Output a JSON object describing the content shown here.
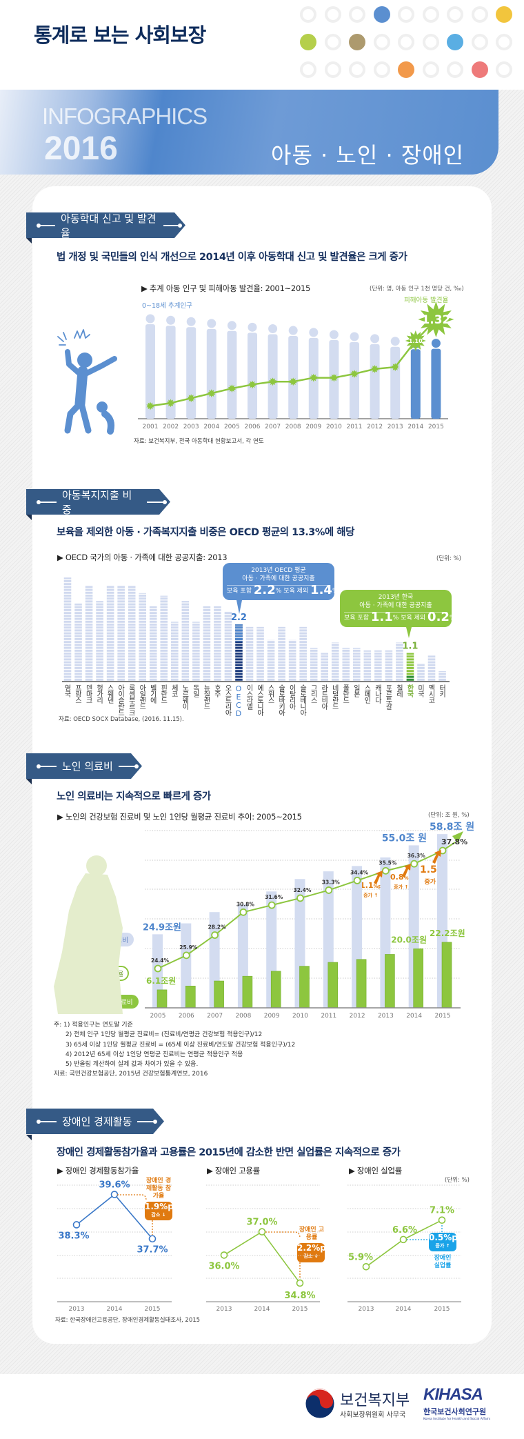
{
  "header": {
    "title": "통계로 보는 사회보장",
    "dots": [
      [
        null,
        null,
        null,
        "#5b8fd0",
        null,
        null,
        null,
        null,
        "#f2c53d"
      ],
      [
        "#b5cf4b",
        null,
        "#ad9a6e",
        null,
        null,
        null,
        "#5aaee3",
        null,
        null
      ],
      [
        null,
        null,
        null,
        null,
        "#f2994a",
        null,
        null,
        "#ee7a7a",
        null
      ]
    ]
  },
  "banner": {
    "kicker": "INFOGRAPHICS",
    "year": "2016",
    "topic": "아동 · 노인 · 장애인"
  },
  "sections": [
    {
      "tab": "아동학대 신고 및 발견율",
      "headline": "법 개정 및 국민들의 인식 개선으로 2014년 이후 아동학대 신고 및 발견율은 크게 증가",
      "chart_title": "▶ 추계 아동 인구 및 피해아동 발견율: 2001~2015",
      "unit": "(단위: 명, 아동 인구 1천 명당 건, ‰)",
      "source": "자료: 보건복지부, 전국 아동학대 현황보고서, 각 연도"
    },
    {
      "tab": "아동복지지출 비중",
      "headline": "보육을 제외한 아동 · 가족복지지출 비중은 OECD 평균의 13.3%에 해당",
      "chart_title": "▶ OECD 국가의 아동 · 가족에 대한 공공지출: 2013",
      "unit": "(단위: %)",
      "source": "자료: OECD SOCX Database, (2016. 11.15).",
      "callout_oecd": {
        "line1": "2013년 OECD 평균",
        "line2": "아동 · 가족에 대한 공공지출",
        "incl_label": "보육 포함",
        "incl_value": "2.2",
        "excl_label": "보육 제외",
        "excl_value": "1.4",
        "pct": "%"
      },
      "callout_korea": {
        "line1": "2013년 한국",
        "line2": "아동 · 가족에 대한 공공지출",
        "incl_label": "보육 포함",
        "incl_value": "1.1",
        "excl_label": "보육 제외",
        "excl_value": "0.2",
        "pct": "%"
      }
    },
    {
      "tab": "노인 의료비",
      "headline": "노인 의료비는 지속적으로 빠르게 증가",
      "chart_title": "▶ 노인의 건강보험 진료비 및 노인 1인당 월평균 진료비 추이: 2005~2015",
      "unit": "(단위: 조 원, %)",
      "legend_total": "총 진료비",
      "legend_ratio": "노인 진료비 비율",
      "legend_elderly": "65세 이상 진료비",
      "notes": [
        "주:  1) 적용인구는 연도말 기준",
        "2) 전체 인구 1인당 월평균 진료비= (진료비/연평균 건강보험 적용인구)/12",
        "3) 65세 이상 1인당 월평균 진료비 = (65세 이상 진료비/연도말 건강보험 적용인구)/12",
        "4) 2012년 65세 이상 1인당 연평균 진료비는 연평균 적용인구 적용",
        "5) 반올림 계산하여 실제 값과 차이가 있을 수 있음."
      ],
      "source": "자료: 국민건강보험공단, 2015년 건강보험통계연보, 2016",
      "increases": [
        {
          "value": "1.1",
          "unit": "%p",
          "label": "증가 ↑"
        },
        {
          "value": "0.8",
          "unit": "%p",
          "label": "증가 ↑"
        },
        {
          "value": "1.5",
          "unit": "%p",
          "label": "증가 ↑"
        }
      ]
    },
    {
      "tab": "장애인 경제활동",
      "headline": "장애인 경제활동참가율과 고용률은 2015년에 감소한 반면 실업률은 지속적으로 증가",
      "sub_titles": [
        "▶ 장애인 경제활동참가율",
        "▶ 장애인 고용률",
        "▶ 장애인 실업률"
      ],
      "unit": "(단위: %)",
      "source": "자료: 한국장애인고용공단, 장애인경제활동실태조사, 2015",
      "callouts": [
        {
          "label": "장애인 경제활동 참가율",
          "value": "1.9%p",
          "change": "감소 ↓",
          "color": "#e07a10"
        },
        {
          "label": "장애인 고용률",
          "value": "2.2%p",
          "change": "감소 ↓",
          "color": "#e07a10"
        },
        {
          "label": "장애인 실업률",
          "value": "0.5%p",
          "change": "증가 ↑",
          "color": "#1aa3e8"
        }
      ]
    }
  ],
  "footer": {
    "mohw_name": "보건복지부",
    "mohw_sub": "사회보장위원회 사무국",
    "kihasa_logo": "KIHASA",
    "kihasa_name": "한국보건사회연구원",
    "kihasa_en": "Korea Institute for Health and Social Affairs"
  },
  "chart_data": [
    {
      "type": "bar+line",
      "categories": [
        "2001",
        "2002",
        "2003",
        "2004",
        "2005",
        "2006",
        "2007",
        "2008",
        "2009",
        "2010",
        "2011",
        "2012",
        "2013",
        "2014",
        "2015"
      ],
      "series": [
        {
          "name": "0~18세 추계인구",
          "type": "bar",
          "color": "#d3dcf0",
          "highlight_color": "#5b8fd0",
          "values": [
            11400000,
            11220000,
            11070000,
            10860000,
            10630000,
            10430000,
            10260000,
            10060000,
            9840000,
            9590000,
            9360000,
            9130000,
            8830000,
            8550000,
            8600000
          ]
        },
        {
          "name": "피해아동 발견율",
          "type": "line",
          "color": "#8dc63f",
          "values": [
            0.43,
            0.46,
            0.51,
            0.56,
            0.61,
            0.65,
            0.68,
            0.68,
            0.72,
            0.72,
            0.76,
            0.81,
            0.83,
            1.1,
            1.32
          ],
          "labeled": {
            "2014": "1.10",
            "2015": "1.32"
          }
        }
      ]
    },
    {
      "type": "bar",
      "categories": [
        "영국",
        "프랑스",
        "덴마크",
        "헝가리",
        "스웨덴",
        "아이슬란드",
        "룩셈부르크",
        "아일랜드",
        "벨기에",
        "핀란드",
        "체코",
        "노르웨이",
        "독일",
        "뉴질랜드",
        "호주",
        "오스트리아",
        "OECD",
        "이스라엘",
        "에스토니아",
        "스위스",
        "슬로바키아",
        "이탈리아",
        "슬로베니아",
        "그리스",
        "라트비아",
        "네덜란드",
        "폴란드",
        "일본",
        "스페인",
        "캐나다",
        "포르투갈",
        "칠레",
        "한국",
        "미국",
        "멕시코",
        "터키"
      ],
      "values": [
        4.0,
        3.0,
        3.7,
        3.1,
        3.7,
        3.7,
        3.7,
        3.4,
        2.9,
        3.3,
        2.3,
        3.1,
        2.3,
        2.9,
        2.9,
        2.7,
        2.2,
        2.1,
        2.1,
        1.6,
        2.1,
        1.6,
        2.1,
        1.3,
        1.1,
        1.5,
        1.3,
        1.3,
        1.2,
        1.2,
        1.2,
        1.5,
        1.1,
        0.7,
        1.0,
        0.4
      ],
      "data_labels": {
        "OECD": "2.2",
        "한국": "1.1"
      },
      "colors": {
        "default": "#d0d9ef",
        "oecd": "#1a3a7c",
        "oecd_label": "#3a78c8",
        "korea": "#8dc63f",
        "korea_label": "#7ab03a"
      }
    },
    {
      "type": "bar+line",
      "categories": [
        "2005",
        "2006",
        "2007",
        "2008",
        "2009",
        "2010",
        "2011",
        "2012",
        "2013",
        "2014",
        "2015"
      ],
      "ylim": [
        0,
        60
      ],
      "series": [
        {
          "name": "총 진료비",
          "type": "bar",
          "unit": "조 원",
          "color": "#d3dcf0",
          "values": [
            24.9,
            28.6,
            32.4,
            35.0,
            39.4,
            43.6,
            46.2,
            48.0,
            50.9,
            55.0,
            58.8
          ],
          "labeled": {
            "2005": "24.9조원",
            "2014": "55.0조 원",
            "2015": "58.8조 원"
          }
        },
        {
          "name": "65세 이상 진료비",
          "type": "bar",
          "unit": "조 원",
          "color": "#8dc63f",
          "values": [
            6.1,
            7.4,
            9.1,
            10.7,
            12.4,
            14.1,
            15.4,
            16.4,
            18.1,
            20.0,
            22.2
          ],
          "labeled": {
            "2005": "6.1조원",
            "2014": "20.0조원",
            "2015": "22.2조원"
          }
        },
        {
          "name": "노인 진료비 비율",
          "type": "line",
          "unit": "%",
          "color": "#8dc63f",
          "values": [
            24.4,
            25.9,
            28.2,
            30.8,
            31.6,
            32.4,
            33.3,
            34.4,
            35.5,
            36.3,
            37.8
          ]
        }
      ]
    },
    {
      "type": "line",
      "categories": [
        "2013",
        "2014",
        "2015"
      ],
      "values": [
        38.3,
        39.6,
        37.7
      ],
      "ylim": [
        35,
        40
      ],
      "color": "#3a78c8"
    },
    {
      "type": "line",
      "categories": [
        "2013",
        "2014",
        "2015"
      ],
      "values": [
        36.0,
        37.0,
        34.8
      ],
      "ylim": [
        34,
        39
      ],
      "color": "#8dc63f"
    },
    {
      "type": "line",
      "categories": [
        "2013",
        "2014",
        "2015"
      ],
      "values": [
        5.9,
        6.6,
        7.1
      ],
      "ylim": [
        5,
        8
      ],
      "color": "#8dc63f"
    }
  ]
}
